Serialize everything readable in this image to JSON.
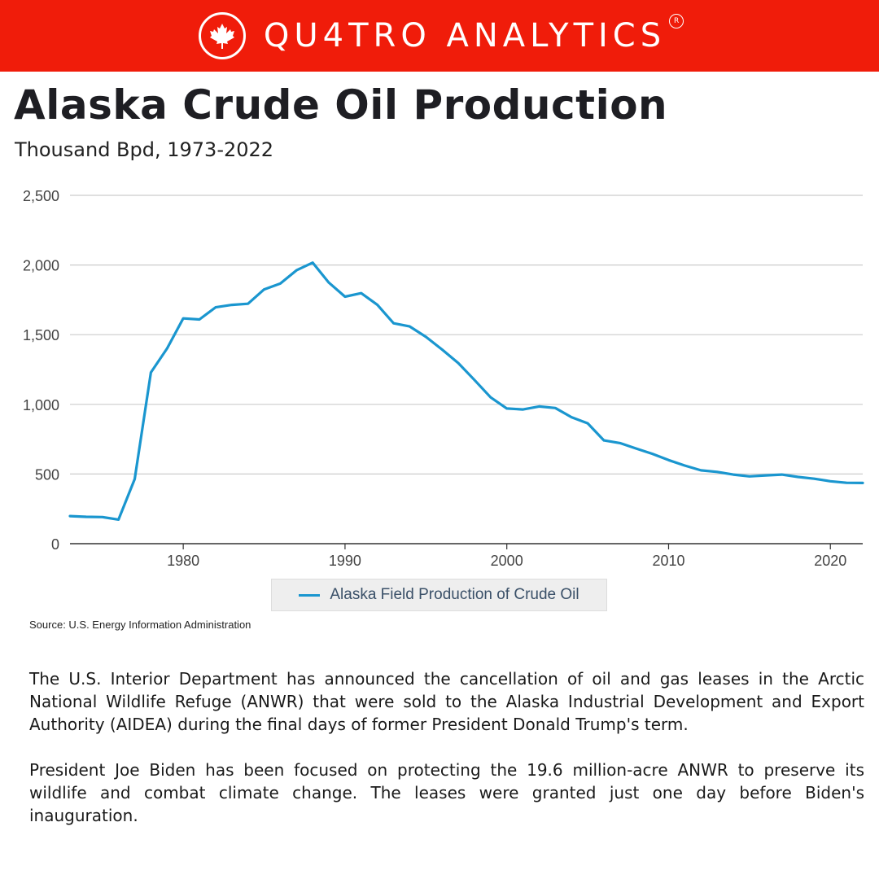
{
  "brand": {
    "name": "QU4TRO ANALYTICS",
    "registered": "R"
  },
  "title": "Alaska Crude Oil Production",
  "subtitle": "Thousand Bpd, 1973-2022",
  "source": "Source: U.S. Energy Information Administration",
  "paragraphs": [
    "The U.S. Interior Department has announced the cancellation of oil and gas leases in the Arctic National Wildlife Refuge (ANWR) that were sold to the Alaska Industrial Development and Export Authority (AIDEA) during the final days of former President Donald Trump's term.",
    "President Joe Biden has been focused on protecting the 19.6 million-acre ANWR to preserve its wildlife and combat climate change. The leases were granted just one day before Biden's inauguration."
  ],
  "colors": {
    "brand_red": "#f01c0a",
    "series_line": "#1a96cf"
  },
  "chart_data": {
    "type": "line",
    "title": "Alaska Crude Oil Production",
    "subtitle": "Thousand Bpd, 1973-2022",
    "xlabel": "",
    "ylabel": "",
    "xlim": [
      1973,
      2022
    ],
    "ylim": [
      0,
      2500
    ],
    "yticks": [
      0,
      500,
      1000,
      1500,
      2000,
      2500
    ],
    "ytick_labels": [
      "0",
      "500",
      "1,000",
      "1,500",
      "2,000",
      "2,500"
    ],
    "xticks": [
      1980,
      1990,
      2000,
      2010,
      2020
    ],
    "xtick_labels": [
      "1980",
      "1990",
      "2000",
      "2010",
      "2020"
    ],
    "grid": true,
    "legend": "bottom-center",
    "series": [
      {
        "name": "Alaska Field Production of Crude Oil",
        "x": [
          1973,
          1974,
          1975,
          1976,
          1977,
          1978,
          1979,
          1980,
          1981,
          1982,
          1983,
          1984,
          1985,
          1986,
          1987,
          1988,
          1989,
          1990,
          1991,
          1992,
          1993,
          1994,
          1995,
          1996,
          1997,
          1998,
          1999,
          2000,
          2001,
          2002,
          2003,
          2004,
          2005,
          2006,
          2007,
          2008,
          2009,
          2010,
          2011,
          2012,
          2013,
          2014,
          2015,
          2016,
          2017,
          2018,
          2019,
          2020,
          2021,
          2022
        ],
        "values": [
          198,
          193,
          191,
          173,
          464,
          1229,
          1401,
          1617,
          1609,
          1696,
          1714,
          1722,
          1825,
          1867,
          1962,
          2017,
          1874,
          1773,
          1798,
          1714,
          1582,
          1559,
          1484,
          1393,
          1296,
          1175,
          1050,
          970,
          963,
          985,
          974,
          908,
          864,
          741,
          722,
          683,
          645,
          600,
          561,
          526,
          515,
          496,
          483,
          490,
          496,
          479,
          466,
          448,
          437,
          436
        ]
      }
    ]
  }
}
